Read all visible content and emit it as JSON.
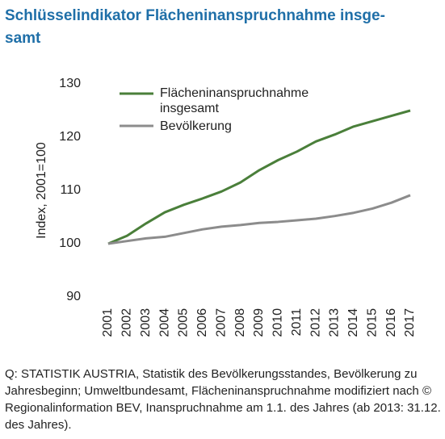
{
  "chart_data": {
    "type": "line",
    "title": [
      "Schlüsselindikator Flächeninanspruchnahme insge-",
      "samt"
    ],
    "y_label": "Index, 2001=100",
    "categories": [
      "2001",
      "2002",
      "2003",
      "2004",
      "2005",
      "2006",
      "2007",
      "2008",
      "2009",
      "2010",
      "2011",
      "2012",
      "2013",
      "2014",
      "2015",
      "2016",
      "2017"
    ],
    "series": [
      {
        "name": "Flächeninanspruchnahme insgesamt",
        "color": "#4a7f3a",
        "values": [
          100,
          101.5,
          103.8,
          105.9,
          107.3,
          108.5,
          109.8,
          111.5,
          113.8,
          115.7,
          117.3,
          119.2,
          120.5,
          122,
          123,
          124,
          125
        ]
      },
      {
        "name": "Bevölkerung",
        "color": "#8c8c8c",
        "values": [
          100,
          100.5,
          101,
          101.3,
          102,
          102.7,
          103.2,
          103.5,
          103.9,
          104.1,
          104.4,
          104.7,
          105.2,
          105.8,
          106.6,
          107.7,
          109.1
        ]
      }
    ],
    "ylim": [
      90,
      130
    ],
    "yticks": [
      90,
      100,
      110,
      120,
      130
    ],
    "grid": false,
    "source": "Q: STATISTIK AUSTRIA, Statistik des Bevölkerungsstandes, Bevölkerung zu Jahresbeginn; Umweltbundesamt, Flächeninanspruchnahme modifiziert nach © Regionalinformation BEV, Inanspruchnahme am 1.1. des Jahres (ab 2013: 31.12. des Jahres)."
  }
}
